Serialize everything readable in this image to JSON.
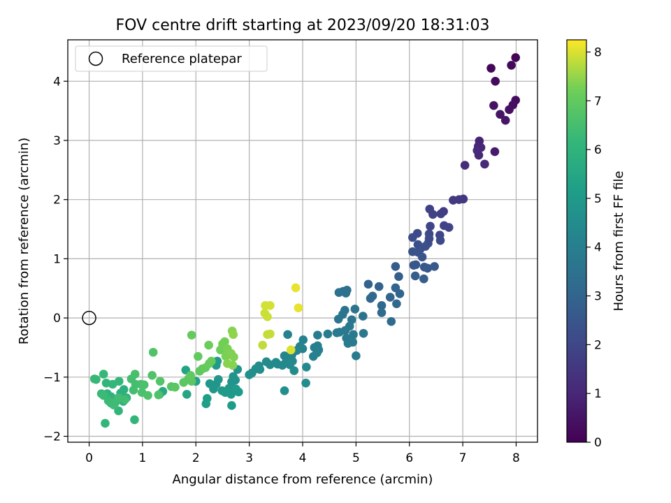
{
  "chart_data": {
    "type": "scatter",
    "title": "FOV centre drift starting at 2023/09/20 18:31:03",
    "xlabel": "Angular distance from reference (arcmin)",
    "ylabel": "Rotation from reference (arcmin)",
    "xlim": [
      -0.4,
      8.4
    ],
    "ylim": [
      -2.1,
      4.7
    ],
    "xticks": [
      "0",
      "1",
      "2",
      "3",
      "4",
      "5",
      "6",
      "7",
      "8"
    ],
    "yticks": [
      "−2",
      "−1",
      "0",
      "1",
      "2",
      "3",
      "4"
    ],
    "grid": true,
    "legend": {
      "placement": "upper-left",
      "entries": [
        "Reference platepar"
      ]
    },
    "reference_point": {
      "x": 0,
      "y": 0
    },
    "colorbar": {
      "label": "Hours from first FF file",
      "range": [
        0,
        8.25
      ],
      "ticks": [
        "0",
        "1",
        "2",
        "3",
        "4",
        "5",
        "6",
        "7",
        "8"
      ],
      "colormap": "viridis"
    },
    "points": [
      {
        "x": 7.99,
        "y": 4.4,
        "c": 0.1
      },
      {
        "x": 7.53,
        "y": 4.22,
        "c": 0.15
      },
      {
        "x": 7.91,
        "y": 4.27,
        "c": 0.2
      },
      {
        "x": 7.61,
        "y": 4.0,
        "c": 0.25
      },
      {
        "x": 7.99,
        "y": 3.68,
        "c": 0.3
      },
      {
        "x": 7.94,
        "y": 3.6,
        "c": 0.35
      },
      {
        "x": 7.87,
        "y": 3.52,
        "c": 0.4
      },
      {
        "x": 7.58,
        "y": 3.59,
        "c": 0.45
      },
      {
        "x": 7.7,
        "y": 3.44,
        "c": 0.5
      },
      {
        "x": 7.8,
        "y": 3.34,
        "c": 0.55
      },
      {
        "x": 7.31,
        "y": 2.99,
        "c": 0.9
      },
      {
        "x": 7.29,
        "y": 2.9,
        "c": 0.95
      },
      {
        "x": 7.34,
        "y": 2.88,
        "c": 1.0
      },
      {
        "x": 7.3,
        "y": 2.75,
        "c": 1.05
      },
      {
        "x": 7.27,
        "y": 2.83,
        "c": 1.1
      },
      {
        "x": 7.6,
        "y": 2.81,
        "c": 0.7
      },
      {
        "x": 7.41,
        "y": 2.6,
        "c": 1.1
      },
      {
        "x": 7.04,
        "y": 2.58,
        "c": 1.2
      },
      {
        "x": 7.01,
        "y": 2.01,
        "c": 1.5
      },
      {
        "x": 6.93,
        "y": 2.0,
        "c": 1.55
      },
      {
        "x": 6.82,
        "y": 1.99,
        "c": 1.6
      },
      {
        "x": 6.64,
        "y": 1.8,
        "c": 1.7
      },
      {
        "x": 6.59,
        "y": 1.76,
        "c": 1.75
      },
      {
        "x": 6.44,
        "y": 1.75,
        "c": 1.8
      },
      {
        "x": 6.38,
        "y": 1.84,
        "c": 1.8
      },
      {
        "x": 6.65,
        "y": 1.56,
        "c": 1.9
      },
      {
        "x": 6.74,
        "y": 1.53,
        "c": 1.9
      },
      {
        "x": 6.39,
        "y": 1.55,
        "c": 1.95
      },
      {
        "x": 6.57,
        "y": 1.4,
        "c": 2.0
      },
      {
        "x": 6.58,
        "y": 1.31,
        "c": 2.05
      },
      {
        "x": 6.37,
        "y": 1.42,
        "c": 2.05
      },
      {
        "x": 6.37,
        "y": 1.34,
        "c": 2.1
      },
      {
        "x": 6.35,
        "y": 1.26,
        "c": 2.15
      },
      {
        "x": 6.15,
        "y": 1.43,
        "c": 2.1
      },
      {
        "x": 6.06,
        "y": 1.36,
        "c": 2.2
      },
      {
        "x": 6.16,
        "y": 1.24,
        "c": 2.25
      },
      {
        "x": 6.2,
        "y": 1.16,
        "c": 2.3
      },
      {
        "x": 6.3,
        "y": 1.21,
        "c": 2.3
      },
      {
        "x": 6.06,
        "y": 1.12,
        "c": 2.35
      },
      {
        "x": 6.16,
        "y": 1.11,
        "c": 2.4
      },
      {
        "x": 6.24,
        "y": 1.03,
        "c": 2.45
      },
      {
        "x": 6.08,
        "y": 0.89,
        "c": 2.5
      },
      {
        "x": 6.12,
        "y": 0.9,
        "c": 2.55
      },
      {
        "x": 6.28,
        "y": 0.86,
        "c": 2.55
      },
      {
        "x": 6.34,
        "y": 0.84,
        "c": 2.6
      },
      {
        "x": 6.47,
        "y": 0.87,
        "c": 2.6
      },
      {
        "x": 5.74,
        "y": 0.87,
        "c": 2.7
      },
      {
        "x": 5.8,
        "y": 0.7,
        "c": 2.75
      },
      {
        "x": 6.11,
        "y": 0.71,
        "c": 2.75
      },
      {
        "x": 6.27,
        "y": 0.66,
        "c": 2.75
      },
      {
        "x": 5.23,
        "y": 0.57,
        "c": 2.9
      },
      {
        "x": 5.43,
        "y": 0.53,
        "c": 2.9
      },
      {
        "x": 5.74,
        "y": 0.51,
        "c": 2.95
      },
      {
        "x": 5.82,
        "y": 0.41,
        "c": 3.0
      },
      {
        "x": 5.64,
        "y": 0.35,
        "c": 3.0
      },
      {
        "x": 5.27,
        "y": 0.33,
        "c": 3.05
      },
      {
        "x": 5.31,
        "y": 0.37,
        "c": 3.05
      },
      {
        "x": 5.76,
        "y": 0.24,
        "c": 3.1
      },
      {
        "x": 5.48,
        "y": 0.21,
        "c": 3.1
      },
      {
        "x": 5.48,
        "y": 0.09,
        "c": 3.2
      },
      {
        "x": 5.66,
        "y": -0.06,
        "c": 3.2
      },
      {
        "x": 4.83,
        "y": 0.47,
        "c": 3.4
      },
      {
        "x": 4.76,
        "y": 0.45,
        "c": 3.4
      },
      {
        "x": 4.68,
        "y": 0.43,
        "c": 3.45
      },
      {
        "x": 4.81,
        "y": 0.42,
        "c": 3.45
      },
      {
        "x": 4.98,
        "y": 0.15,
        "c": 3.5
      },
      {
        "x": 4.79,
        "y": 0.13,
        "c": 3.55
      },
      {
        "x": 4.75,
        "y": 0.06,
        "c": 3.6
      },
      {
        "x": 5.13,
        "y": 0.03,
        "c": 3.55
      },
      {
        "x": 4.67,
        "y": -0.02,
        "c": 3.65
      },
      {
        "x": 4.92,
        "y": -0.03,
        "c": 3.65
      },
      {
        "x": 4.88,
        "y": -0.14,
        "c": 3.7
      },
      {
        "x": 4.69,
        "y": -0.24,
        "c": 3.75
      },
      {
        "x": 4.8,
        "y": -0.21,
        "c": 3.75
      },
      {
        "x": 4.64,
        "y": -0.25,
        "c": 3.8
      },
      {
        "x": 4.47,
        "y": -0.27,
        "c": 3.85
      },
      {
        "x": 4.28,
        "y": -0.29,
        "c": 3.9
      },
      {
        "x": 5.14,
        "y": -0.26,
        "c": 3.7
      },
      {
        "x": 4.95,
        "y": -0.28,
        "c": 3.75
      },
      {
        "x": 4.82,
        "y": -0.34,
        "c": 3.8
      },
      {
        "x": 4.94,
        "y": -0.41,
        "c": 3.85
      },
      {
        "x": 4.85,
        "y": -0.43,
        "c": 3.85
      },
      {
        "x": 5.0,
        "y": -0.64,
        "c": 3.9
      },
      {
        "x": 4.28,
        "y": -0.47,
        "c": 4.0
      },
      {
        "x": 4.22,
        "y": -0.5,
        "c": 4.0
      },
      {
        "x": 4.3,
        "y": -0.54,
        "c": 4.05
      },
      {
        "x": 4.27,
        "y": -0.59,
        "c": 4.05
      },
      {
        "x": 4.2,
        "y": -0.65,
        "c": 4.1
      },
      {
        "x": 4.01,
        "y": -0.37,
        "c": 4.1
      },
      {
        "x": 3.72,
        "y": -0.28,
        "c": 4.1
      },
      {
        "x": 3.95,
        "y": -0.48,
        "c": 4.15
      },
      {
        "x": 4.0,
        "y": -0.52,
        "c": 4.15
      },
      {
        "x": 3.89,
        "y": -0.55,
        "c": 4.2
      },
      {
        "x": 3.8,
        "y": -0.62,
        "c": 4.2
      },
      {
        "x": 3.66,
        "y": -0.64,
        "c": 4.25
      },
      {
        "x": 3.73,
        "y": -0.68,
        "c": 4.25
      },
      {
        "x": 3.81,
        "y": -0.73,
        "c": 4.3
      },
      {
        "x": 3.68,
        "y": -0.76,
        "c": 4.3
      },
      {
        "x": 3.76,
        "y": -0.79,
        "c": 4.35
      },
      {
        "x": 3.53,
        "y": -0.78,
        "c": 4.35
      },
      {
        "x": 3.62,
        "y": -0.8,
        "c": 4.4
      },
      {
        "x": 3.5,
        "y": -0.75,
        "c": 4.4
      },
      {
        "x": 3.39,
        "y": -0.79,
        "c": 4.45
      },
      {
        "x": 3.32,
        "y": -0.74,
        "c": 4.45
      },
      {
        "x": 4.07,
        "y": -0.83,
        "c": 4.4
      },
      {
        "x": 3.84,
        "y": -0.89,
        "c": 4.45
      },
      {
        "x": 3.18,
        "y": -0.81,
        "c": 4.5
      },
      {
        "x": 3.12,
        "y": -0.86,
        "c": 4.55
      },
      {
        "x": 3.2,
        "y": -0.87,
        "c": 4.55
      },
      {
        "x": 3.05,
        "y": -0.93,
        "c": 4.6
      },
      {
        "x": 3.0,
        "y": -0.96,
        "c": 4.65
      },
      {
        "x": 4.06,
        "y": -1.1,
        "c": 4.5
      },
      {
        "x": 3.66,
        "y": -1.23,
        "c": 4.6
      },
      {
        "x": 2.78,
        "y": -0.87,
        "c": 4.7
      },
      {
        "x": 2.7,
        "y": -0.99,
        "c": 4.75
      },
      {
        "x": 2.74,
        "y": -1.05,
        "c": 4.75
      },
      {
        "x": 2.67,
        "y": -1.08,
        "c": 4.8
      },
      {
        "x": 2.42,
        "y": -1.04,
        "c": 4.85
      },
      {
        "x": 2.38,
        "y": -1.12,
        "c": 4.85
      },
      {
        "x": 2.26,
        "y": -1.11,
        "c": 4.9
      },
      {
        "x": 2.33,
        "y": -1.2,
        "c": 4.9
      },
      {
        "x": 2.49,
        "y": -1.23,
        "c": 4.95
      },
      {
        "x": 2.62,
        "y": -1.19,
        "c": 4.95
      },
      {
        "x": 2.75,
        "y": -1.2,
        "c": 5.0
      },
      {
        "x": 2.8,
        "y": -1.25,
        "c": 5.0
      },
      {
        "x": 2.66,
        "y": -1.29,
        "c": 5.05
      },
      {
        "x": 2.55,
        "y": -1.26,
        "c": 5.05
      },
      {
        "x": 2.67,
        "y": -1.48,
        "c": 5.1
      },
      {
        "x": 2.4,
        "y": -0.73,
        "c": 5.0
      },
      {
        "x": 2.38,
        "y": -0.8,
        "c": 5.05
      },
      {
        "x": 2.21,
        "y": -1.36,
        "c": 5.2
      },
      {
        "x": 2.19,
        "y": -1.45,
        "c": 5.2
      },
      {
        "x": 2.0,
        "y": -1.07,
        "c": 5.3
      },
      {
        "x": 1.81,
        "y": -0.88,
        "c": 5.4
      },
      {
        "x": 1.83,
        "y": -1.29,
        "c": 5.45
      },
      {
        "x": 1.38,
        "y": -1.24,
        "c": 5.6
      },
      {
        "x": 1.32,
        "y": -1.29,
        "c": 5.65
      },
      {
        "x": 0.65,
        "y": -1.21,
        "c": 5.8
      },
      {
        "x": 0.59,
        "y": -1.27,
        "c": 5.85
      },
      {
        "x": 0.64,
        "y": -1.41,
        "c": 5.85
      },
      {
        "x": 0.7,
        "y": -1.35,
        "c": 5.9
      },
      {
        "x": 0.41,
        "y": -1.33,
        "c": 5.95
      },
      {
        "x": 0.34,
        "y": -1.28,
        "c": 6.0
      },
      {
        "x": 0.41,
        "y": -1.44,
        "c": 6.0
      },
      {
        "x": 0.55,
        "y": -1.57,
        "c": 6.05
      },
      {
        "x": 0.3,
        "y": -1.78,
        "c": 6.1
      },
      {
        "x": 0.85,
        "y": -1.72,
        "c": 6.1
      },
      {
        "x": 0.32,
        "y": -1.1,
        "c": 6.1
      },
      {
        "x": 0.44,
        "y": -1.12,
        "c": 6.15
      },
      {
        "x": 0.56,
        "y": -1.07,
        "c": 6.15
      },
      {
        "x": 0.27,
        "y": -0.95,
        "c": 6.2
      },
      {
        "x": 0.13,
        "y": -1.04,
        "c": 6.2
      },
      {
        "x": 0.1,
        "y": -1.03,
        "c": 6.25
      },
      {
        "x": 0.23,
        "y": -1.28,
        "c": 6.25
      },
      {
        "x": 0.27,
        "y": -1.31,
        "c": 6.3
      },
      {
        "x": 0.36,
        "y": -1.4,
        "c": 6.3
      },
      {
        "x": 0.49,
        "y": -1.43,
        "c": 6.35
      },
      {
        "x": 0.46,
        "y": -1.47,
        "c": 6.35
      },
      {
        "x": 0.55,
        "y": -1.35,
        "c": 6.4
      },
      {
        "x": 0.67,
        "y": -1.38,
        "c": 6.4
      },
      {
        "x": 0.83,
        "y": -1.22,
        "c": 6.45
      },
      {
        "x": 0.87,
        "y": -1.12,
        "c": 6.45
      },
      {
        "x": 0.79,
        "y": -1.03,
        "c": 6.5
      },
      {
        "x": 0.86,
        "y": -0.95,
        "c": 6.55
      },
      {
        "x": 0.97,
        "y": -1.12,
        "c": 6.55
      },
      {
        "x": 1.03,
        "y": -1.13,
        "c": 6.6
      },
      {
        "x": 0.99,
        "y": -1.26,
        "c": 6.6
      },
      {
        "x": 1.1,
        "y": -1.31,
        "c": 6.65
      },
      {
        "x": 1.3,
        "y": -1.3,
        "c": 6.65
      },
      {
        "x": 1.18,
        "y": -0.97,
        "c": 6.7
      },
      {
        "x": 1.2,
        "y": -0.58,
        "c": 6.7
      },
      {
        "x": 1.33,
        "y": -1.07,
        "c": 6.75
      },
      {
        "x": 1.54,
        "y": -1.16,
        "c": 6.8
      },
      {
        "x": 1.61,
        "y": -1.17,
        "c": 6.85
      },
      {
        "x": 1.77,
        "y": -1.09,
        "c": 6.85
      },
      {
        "x": 1.86,
        "y": -1.03,
        "c": 6.9
      },
      {
        "x": 1.92,
        "y": -1.07,
        "c": 6.9
      },
      {
        "x": 1.9,
        "y": -0.97,
        "c": 6.95
      },
      {
        "x": 2.07,
        "y": -0.9,
        "c": 6.95
      },
      {
        "x": 2.04,
        "y": -0.65,
        "c": 7.0
      },
      {
        "x": 1.92,
        "y": -0.29,
        "c": 7.05
      },
      {
        "x": 2.12,
        "y": -0.86,
        "c": 7.0
      },
      {
        "x": 2.18,
        "y": -0.84,
        "c": 7.05
      },
      {
        "x": 2.25,
        "y": -0.77,
        "c": 7.1
      },
      {
        "x": 2.29,
        "y": -0.73,
        "c": 7.1
      },
      {
        "x": 2.24,
        "y": -0.46,
        "c": 7.15
      },
      {
        "x": 2.46,
        "y": -0.54,
        "c": 7.2
      },
      {
        "x": 2.5,
        "y": -0.44,
        "c": 7.25
      },
      {
        "x": 2.54,
        "y": -0.4,
        "c": 7.25
      },
      {
        "x": 2.56,
        "y": -0.65,
        "c": 7.3
      },
      {
        "x": 2.59,
        "y": -0.52,
        "c": 7.3
      },
      {
        "x": 2.66,
        "y": -0.6,
        "c": 7.35
      },
      {
        "x": 2.71,
        "y": -0.66,
        "c": 7.35
      },
      {
        "x": 2.59,
        "y": -0.77,
        "c": 7.4
      },
      {
        "x": 2.69,
        "y": -0.8,
        "c": 7.4
      },
      {
        "x": 2.68,
        "y": -0.22,
        "c": 7.4
      },
      {
        "x": 2.7,
        "y": -0.28,
        "c": 7.45
      },
      {
        "x": 3.25,
        "y": -0.46,
        "c": 7.8
      },
      {
        "x": 3.34,
        "y": -0.28,
        "c": 7.85
      },
      {
        "x": 3.39,
        "y": -0.27,
        "c": 7.85
      },
      {
        "x": 3.29,
        "y": 0.08,
        "c": 7.9
      },
      {
        "x": 3.34,
        "y": 0.02,
        "c": 7.9
      },
      {
        "x": 3.3,
        "y": 0.21,
        "c": 7.95
      },
      {
        "x": 3.39,
        "y": 0.21,
        "c": 7.95
      },
      {
        "x": 3.78,
        "y": -0.54,
        "c": 8.0
      },
      {
        "x": 3.87,
        "y": 0.51,
        "c": 8.1
      },
      {
        "x": 3.92,
        "y": 0.17,
        "c": 8.1
      }
    ]
  }
}
